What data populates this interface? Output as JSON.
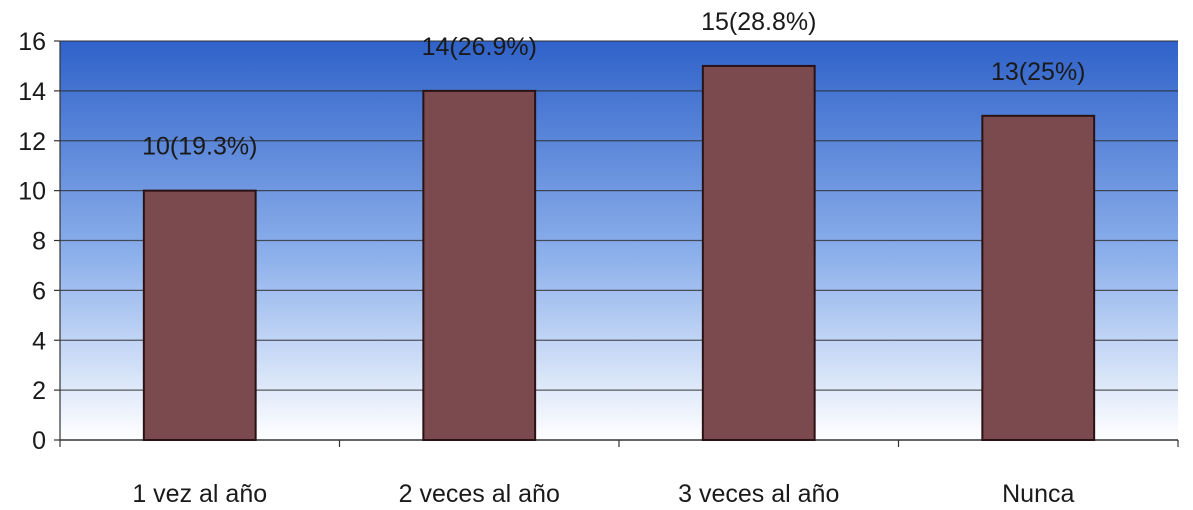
{
  "chart_data": {
    "type": "bar",
    "title": "",
    "xlabel": "",
    "ylabel": "",
    "categories": [
      "1 vez al año",
      "2 veces al año",
      "3 veces al año",
      "Nunca"
    ],
    "values": [
      10,
      14,
      15,
      13
    ],
    "data_labels": [
      "10(19.3%)",
      "14(26.9%)",
      "15(28.8%)",
      "13(25%)"
    ],
    "ylim": [
      0,
      16
    ],
    "yticks": [
      0,
      2,
      4,
      6,
      8,
      10,
      12,
      14,
      16
    ],
    "grid": true,
    "legend": "none",
    "colors": {
      "bar_fill": "#7a4a4f",
      "bar_stroke": "#2a1214",
      "plot_top": "#2f62c9",
      "plot_bottom": "#ffffff",
      "gridline": "#2a2a2a"
    }
  }
}
